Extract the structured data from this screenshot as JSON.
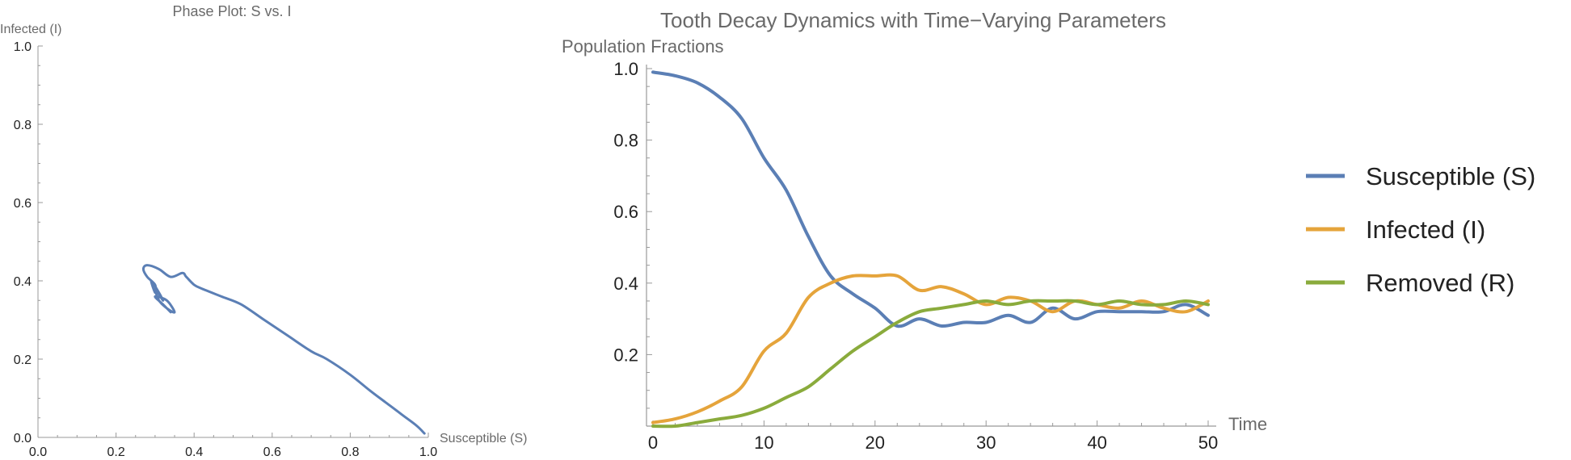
{
  "chart_data": [
    {
      "type": "line",
      "title": "Phase Plot: S vs. I",
      "xlabel": "Susceptible (S)",
      "ylabel": "Infected (I)",
      "xlim": [
        0,
        1
      ],
      "ylim": [
        0,
        1
      ],
      "x_ticks": [
        "0.0",
        "0.2",
        "0.4",
        "0.6",
        "0.8",
        "1.0"
      ],
      "y_ticks": [
        "0.0",
        "0.2",
        "0.4",
        "0.6",
        "0.8",
        "1.0"
      ],
      "series": [
        {
          "color": "#5b7fb5",
          "x": [
            0.99,
            0.97,
            0.93,
            0.89,
            0.85,
            0.8,
            0.74,
            0.7,
            0.64,
            0.58,
            0.52,
            0.47,
            0.42,
            0.4,
            0.38,
            0.37,
            0.34,
            0.31,
            0.28,
            0.27,
            0.28,
            0.3,
            0.3,
            0.29,
            0.31,
            0.32,
            0.3,
            0.31,
            0.33,
            0.35,
            0.33,
            0.3,
            0.32,
            0.34
          ],
          "y": [
            0.01,
            0.03,
            0.06,
            0.09,
            0.12,
            0.16,
            0.2,
            0.22,
            0.26,
            0.3,
            0.34,
            0.36,
            0.38,
            0.39,
            0.41,
            0.42,
            0.41,
            0.43,
            0.44,
            0.43,
            0.41,
            0.39,
            0.37,
            0.4,
            0.37,
            0.35,
            0.38,
            0.35,
            0.33,
            0.32,
            0.35,
            0.36,
            0.34,
            0.32
          ]
        }
      ]
    },
    {
      "type": "line",
      "title": "Tooth Decay Dynamics with Time−Varying Parameters",
      "xlabel": "Time",
      "ylabel": "Population Fractions",
      "xlim": [
        0,
        50
      ],
      "ylim": [
        0,
        1
      ],
      "x_ticks": [
        "0",
        "10",
        "20",
        "30",
        "40",
        "50"
      ],
      "y_ticks": [
        "0.2",
        "0.4",
        "0.6",
        "0.8",
        "1.0"
      ],
      "legend_position": "right",
      "series": [
        {
          "name": "Susceptible (S)",
          "color": "#5b7fb5",
          "x": [
            0,
            2,
            4,
            6,
            8,
            10,
            12,
            14,
            16,
            18,
            20,
            22,
            24,
            26,
            28,
            30,
            32,
            34,
            36,
            38,
            40,
            42,
            44,
            46,
            48,
            50
          ],
          "y": [
            0.99,
            0.98,
            0.96,
            0.92,
            0.86,
            0.75,
            0.66,
            0.53,
            0.42,
            0.37,
            0.33,
            0.28,
            0.3,
            0.28,
            0.29,
            0.29,
            0.31,
            0.29,
            0.33,
            0.3,
            0.32,
            0.32,
            0.32,
            0.32,
            0.34,
            0.31
          ]
        },
        {
          "name": "Infected (I)",
          "color": "#e5a43b",
          "x": [
            0,
            2,
            4,
            6,
            8,
            10,
            12,
            14,
            16,
            18,
            20,
            22,
            24,
            26,
            28,
            30,
            32,
            34,
            36,
            38,
            40,
            42,
            44,
            46,
            48,
            50
          ],
          "y": [
            0.01,
            0.02,
            0.04,
            0.07,
            0.11,
            0.21,
            0.26,
            0.36,
            0.4,
            0.42,
            0.42,
            0.42,
            0.38,
            0.39,
            0.37,
            0.34,
            0.36,
            0.35,
            0.32,
            0.35,
            0.34,
            0.33,
            0.35,
            0.33,
            0.32,
            0.35
          ]
        },
        {
          "name": "Removed (R)",
          "color": "#8aab3c",
          "x": [
            0,
            2,
            4,
            6,
            8,
            10,
            12,
            14,
            16,
            18,
            20,
            22,
            24,
            26,
            28,
            30,
            32,
            34,
            36,
            38,
            40,
            42,
            44,
            46,
            48,
            50
          ],
          "y": [
            0.0,
            0.0,
            0.01,
            0.02,
            0.03,
            0.05,
            0.08,
            0.11,
            0.16,
            0.21,
            0.25,
            0.29,
            0.32,
            0.33,
            0.34,
            0.35,
            0.34,
            0.35,
            0.35,
            0.35,
            0.34,
            0.35,
            0.34,
            0.34,
            0.35,
            0.34
          ]
        }
      ]
    }
  ]
}
